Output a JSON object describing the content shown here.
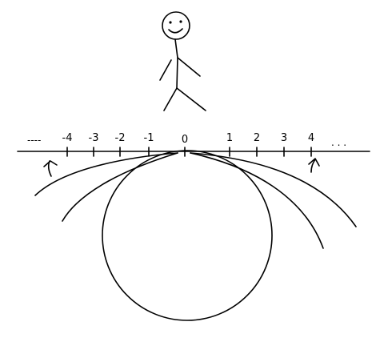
{
  "number_line": {
    "left_ellipsis": "----",
    "right_ellipsis": ". . .",
    "ticks": [
      {
        "label": "-4",
        "value": -4
      },
      {
        "label": "-3",
        "value": -3
      },
      {
        "label": "-2",
        "value": -2
      },
      {
        "label": "-1",
        "value": -1
      },
      {
        "label": "0",
        "value": 0
      },
      {
        "label": "1",
        "value": 1
      },
      {
        "label": "2",
        "value": 2
      },
      {
        "label": "3",
        "value": 3
      },
      {
        "label": "4",
        "value": 4
      }
    ]
  },
  "figure": {
    "description_icon": "stick-figure-icon"
  },
  "circle": {
    "icon": "circle-icon"
  },
  "arrows": [
    "curved-up-arrow-icon",
    "curved-up-arrow-icon"
  ]
}
